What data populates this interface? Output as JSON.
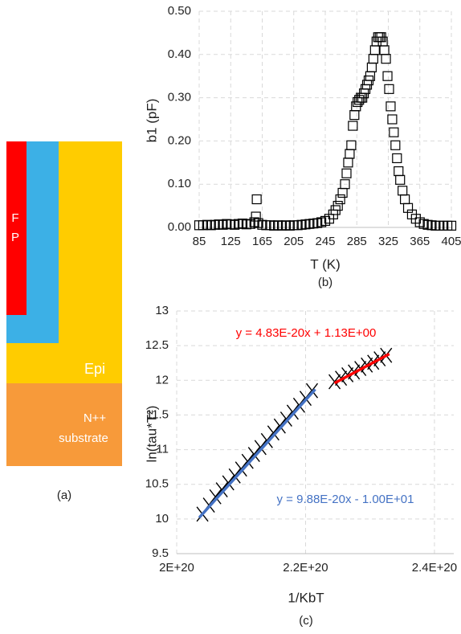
{
  "diagram": {
    "labels": [
      "F",
      "P",
      "Epi",
      "N++",
      "substrate"
    ],
    "caption": "(a)"
  },
  "chart_data": [
    {
      "type": "scatter",
      "caption": "(b)",
      "xlabel": "T (K)",
      "ylabel": "b1 (pF)",
      "xlim": [
        85,
        405
      ],
      "xticks": [
        85,
        125,
        165,
        205,
        245,
        285,
        325,
        365,
        405
      ],
      "ylim": [
        0,
        0.5
      ],
      "yticks": [
        {
          "value": 0,
          "label": "0.00"
        },
        {
          "value": 0.1,
          "label": "0.10"
        },
        {
          "value": 0.2,
          "label": "0.20"
        },
        {
          "value": 0.3,
          "label": "0.30"
        },
        {
          "value": 0.4,
          "label": "0.40"
        },
        {
          "value": 0.5,
          "label": "0.50"
        }
      ],
      "grid": true,
      "series": [
        {
          "marker": "square",
          "color": "#000000",
          "x": [
            85,
            90,
            95,
            100,
            105,
            110,
            115,
            120,
            125,
            130,
            135,
            140,
            145,
            150,
            155,
            157,
            158,
            160,
            165,
            170,
            175,
            180,
            185,
            190,
            195,
            200,
            205,
            210,
            215,
            220,
            225,
            230,
            235,
            240,
            245,
            250,
            255,
            258,
            261,
            264,
            267,
            270,
            272,
            274,
            276,
            278,
            280,
            282,
            284,
            286,
            288,
            290,
            292,
            294,
            296,
            298,
            300,
            302,
            304,
            306,
            308,
            310,
            312,
            314,
            316,
            318,
            320,
            322,
            324,
            326,
            328,
            330,
            332,
            334,
            336,
            338,
            340,
            343,
            346,
            350,
            355,
            360,
            365,
            370,
            375,
            380,
            385,
            390,
            395,
            400,
            405
          ],
          "values": [
            0.005,
            0.005,
            0.006,
            0.005,
            0.006,
            0.007,
            0.006,
            0.008,
            0.007,
            0.006,
            0.008,
            0.009,
            0.007,
            0.008,
            0.012,
            0.025,
            0.065,
            0.01,
            0.006,
            0.005,
            0.005,
            0.004,
            0.005,
            0.004,
            0.005,
            0.004,
            0.005,
            0.005,
            0.006,
            0.007,
            0.008,
            0.009,
            0.01,
            0.012,
            0.015,
            0.02,
            0.03,
            0.04,
            0.05,
            0.065,
            0.08,
            0.1,
            0.125,
            0.15,
            0.17,
            0.19,
            0.235,
            0.26,
            0.28,
            0.29,
            0.295,
            0.3,
            0.3,
            0.31,
            0.32,
            0.33,
            0.34,
            0.35,
            0.37,
            0.39,
            0.41,
            0.43,
            0.44,
            0.44,
            0.44,
            0.43,
            0.41,
            0.39,
            0.35,
            0.32,
            0.28,
            0.25,
            0.22,
            0.19,
            0.16,
            0.13,
            0.11,
            0.085,
            0.065,
            0.045,
            0.03,
            0.02,
            0.012,
            0.008,
            0.006,
            0.005,
            0.004,
            0.004,
            0.004,
            0.004,
            0.004
          ]
        }
      ]
    },
    {
      "type": "scatter",
      "caption": "(c)",
      "xlabel": "1/KbT",
      "ylabel": "ln(tau*T²)",
      "xlim": [
        2e+20,
        2.43e+20
      ],
      "xticks": [
        {
          "value": 2e+20,
          "label": "2E+20"
        },
        {
          "value": 2.2e+20,
          "label": "2.2E+20"
        },
        {
          "value": 2.4e+20,
          "label": "2.4E+20"
        }
      ],
      "ylim": [
        9.5,
        13
      ],
      "yticks": [
        9.5,
        10,
        10.5,
        11,
        11.5,
        12,
        12.5,
        13
      ],
      "grid": true,
      "series": [
        {
          "marker": "cross",
          "color": "#000000",
          "x": [
            2.04e+20,
            2.05e+20,
            2.06e+20,
            2.07e+20,
            2.08e+20,
            2.09e+20,
            2.1e+20,
            2.11e+20,
            2.12e+20,
            2.13e+20,
            2.14e+20,
            2.15e+20,
            2.16e+20,
            2.17e+20,
            2.18e+20,
            2.19e+20,
            2.2e+20,
            2.21e+20,
            2.245e+20,
            2.255e+20,
            2.265e+20,
            2.275e+20,
            2.285e+20,
            2.295e+20,
            2.305e+20,
            2.315e+20,
            2.325e+20
          ],
          "values": [
            10.07,
            10.2,
            10.32,
            10.42,
            10.52,
            10.62,
            10.72,
            10.83,
            10.93,
            11.03,
            11.13,
            11.24,
            11.34,
            11.44,
            11.54,
            11.64,
            11.74,
            11.85,
            11.98,
            12.03,
            12.08,
            12.12,
            12.17,
            12.22,
            12.26,
            12.31,
            12.36
          ]
        },
        {
          "marker": "line",
          "color": "#4472c4",
          "x": [
            2.035e+20,
            2.215e+20
          ],
          "values": [
            10.02,
            11.87
          ]
        },
        {
          "marker": "line",
          "color": "#ff0000",
          "x": [
            2.245e+20,
            2.33e+20
          ],
          "values": [
            11.96,
            12.38
          ]
        }
      ],
      "annotations": [
        {
          "text": "y = 4.83E-20x + 1.13E+00",
          "color": "#ff0000"
        },
        {
          "text": "y = 9.88E-20x - 1.00E+01",
          "color": "#4472c4"
        }
      ]
    }
  ]
}
